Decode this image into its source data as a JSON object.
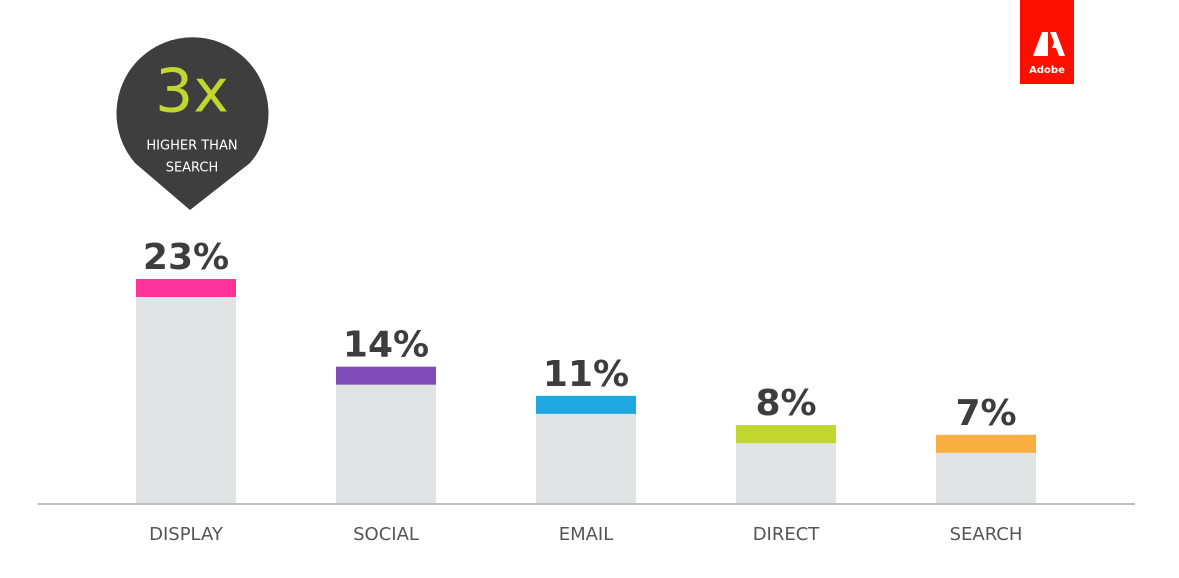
{
  "chart_data": {
    "type": "bar",
    "categories": [
      "DISPLAY",
      "SOCIAL",
      "EMAIL",
      "DIRECT",
      "SEARCH"
    ],
    "values": [
      23,
      14,
      11,
      8,
      7
    ],
    "value_labels": [
      "23%",
      "14%",
      "11%",
      "8%",
      "7%"
    ],
    "colors": [
      "#ff3399",
      "#7f4cb8",
      "#1ea7e1",
      "#c1d72e",
      "#f9ae40"
    ],
    "annotation": {
      "text": "3x",
      "subtext": [
        "HIGHER THAN",
        "SEARCH"
      ]
    }
  },
  "logo": "Adobe"
}
